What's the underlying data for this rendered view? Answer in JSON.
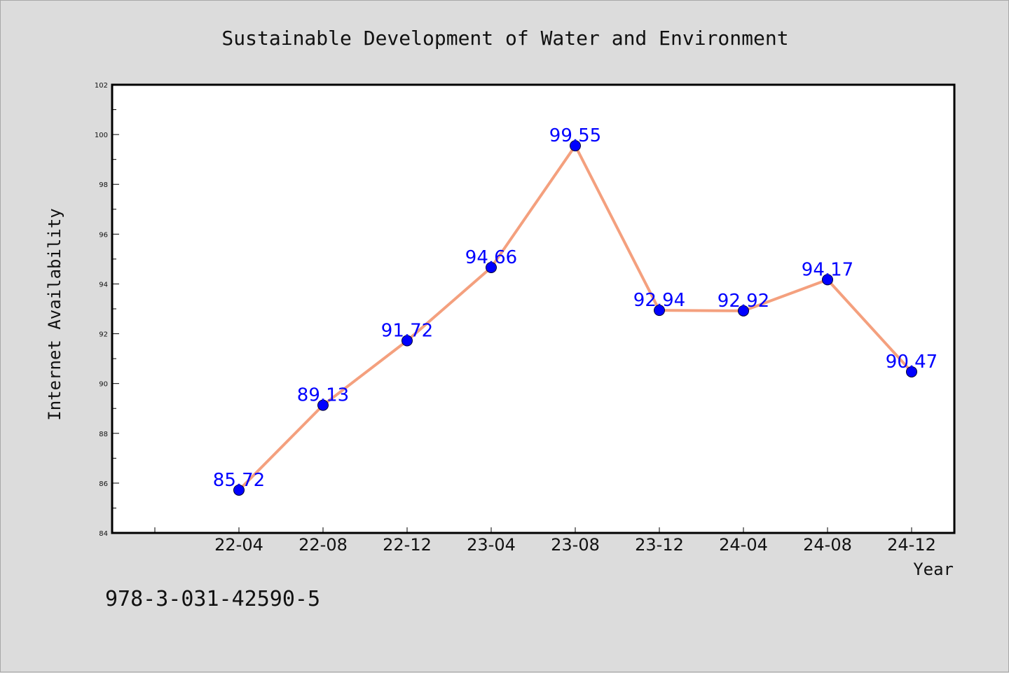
{
  "chart_data": {
    "type": "line",
    "title": "Sustainable Development of Water and Environment",
    "xlabel": "Year",
    "ylabel": "Internet Availability",
    "categories": [
      "22-04",
      "22-08",
      "22-12",
      "23-04",
      "23-08",
      "23-12",
      "24-04",
      "24-08",
      "24-12"
    ],
    "series": [
      {
        "values": [
          85.72,
          89.13,
          91.72,
          94.66,
          99.55,
          92.94,
          92.92,
          94.17,
          90.47
        ],
        "labels": [
          "85.72",
          "89.13",
          "91.72",
          "94.66",
          "99.55",
          "92.94",
          "92.92",
          "94.17",
          "90.47"
        ]
      }
    ],
    "ylim": [
      84,
      102
    ],
    "yticks": [
      "84",
      "86",
      "88",
      "90",
      "92",
      "94",
      "96",
      "98",
      "100",
      "102"
    ],
    "grid": false,
    "legend": "none",
    "colors": {
      "line": "#f4a07e",
      "marker": "#0000ff",
      "label": "#0000ff",
      "background": "#dcdcdc",
      "plot_background": "#ffffff"
    }
  },
  "footer": {
    "isbn": "978-3-031-42590-5"
  }
}
